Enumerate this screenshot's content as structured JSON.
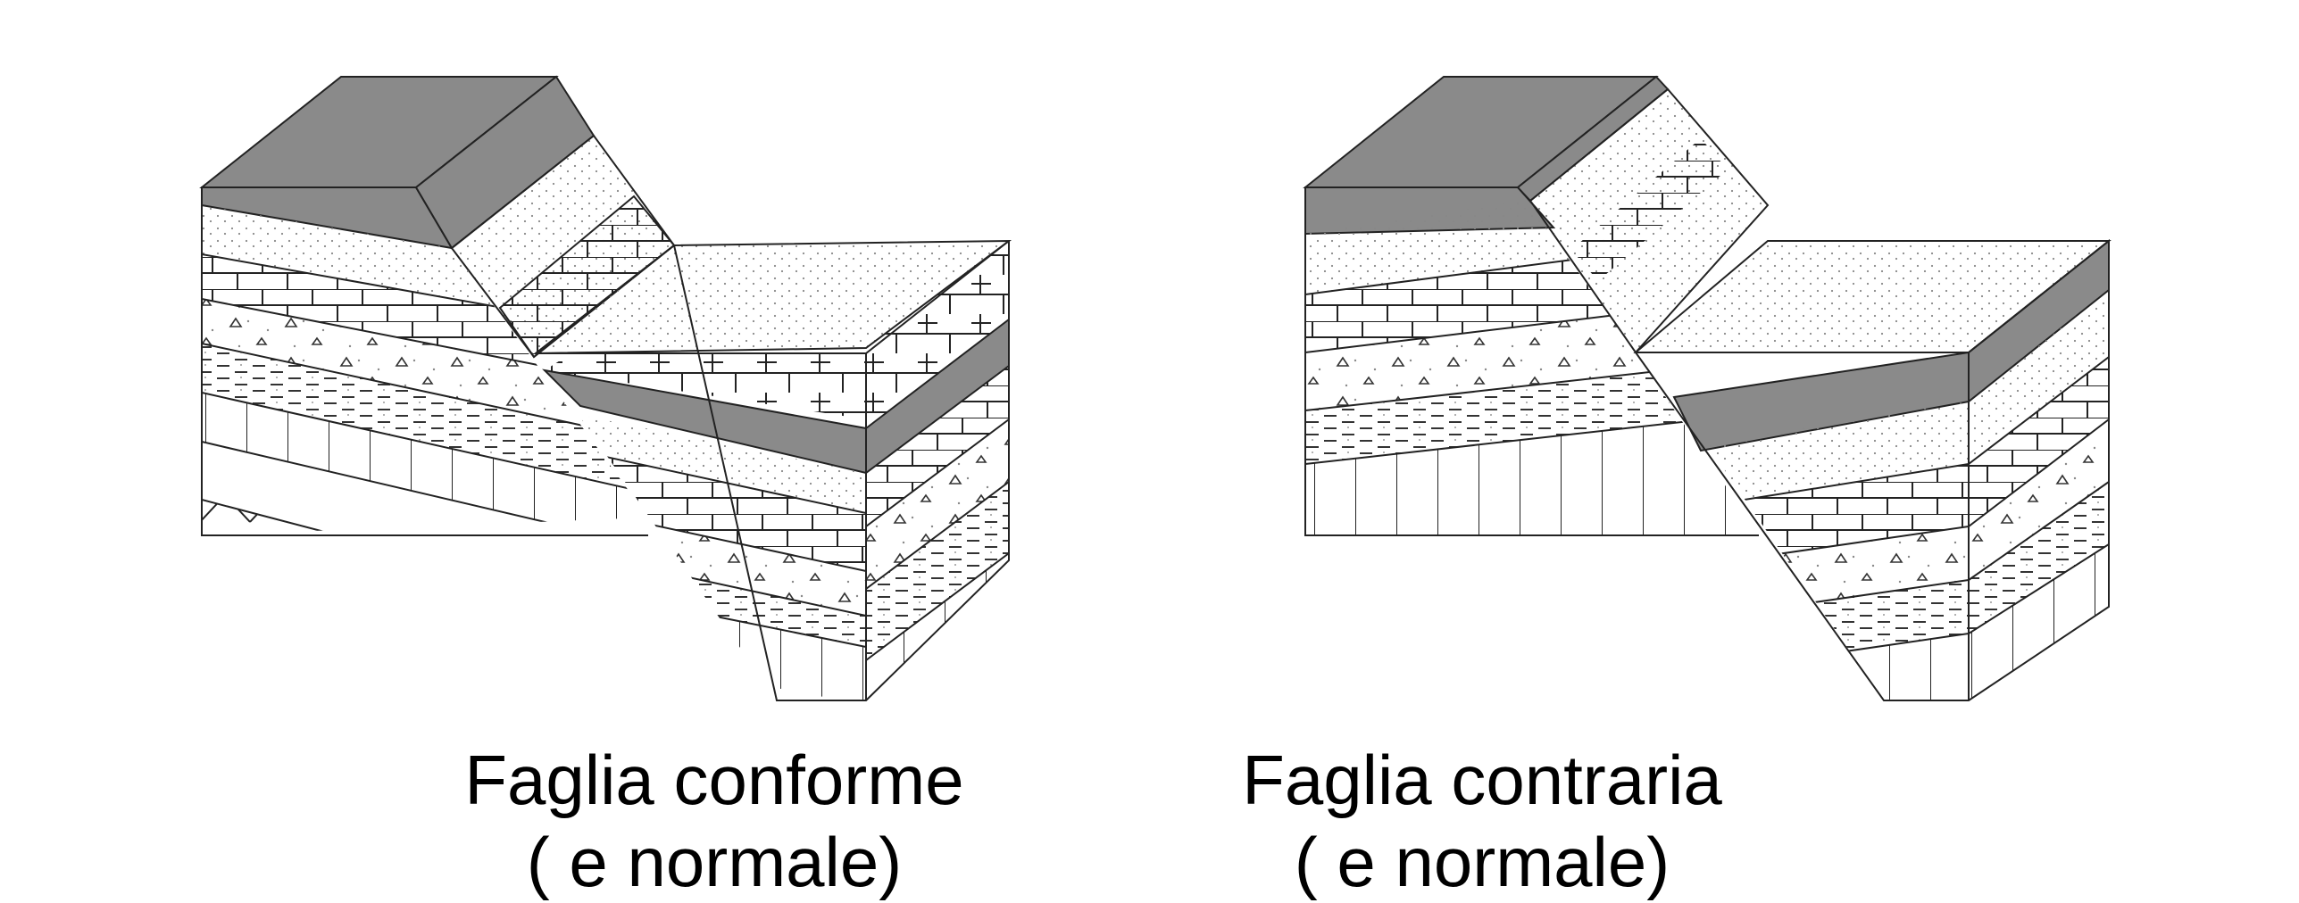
{
  "figures": [
    {
      "caption_line1": "Faglia conforme",
      "caption_line2": "( e normale)"
    },
    {
      "caption_line1": "Faglia contraria",
      "caption_line2": "( e normale)"
    }
  ],
  "colors": {
    "dark_layer": "#8a8a8a",
    "line": "#222222",
    "background": "#ffffff"
  }
}
